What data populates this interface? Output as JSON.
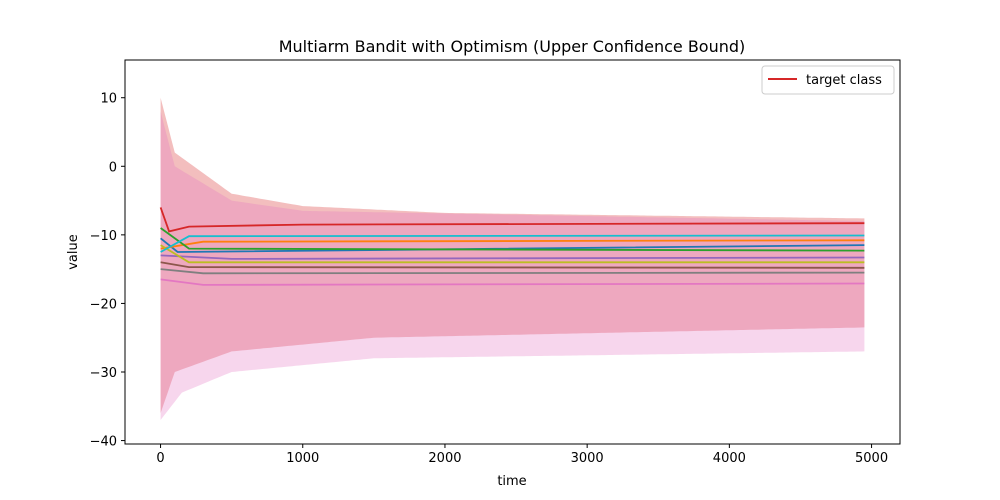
{
  "chart_data": {
    "type": "line",
    "title": "Multiarm Bandit with Optimism (Upper Confidence Bound)",
    "xlabel": "time",
    "ylabel": "value",
    "xlim": [
      -250,
      5200
    ],
    "ylim": [
      -40.5,
      15.5
    ],
    "x_ticks": [
      0,
      1000,
      2000,
      3000,
      4000,
      5000
    ],
    "y_ticks": [
      -40,
      -30,
      -20,
      -10,
      0,
      10
    ],
    "x_end": 4950,
    "legend": {
      "location": "top-right",
      "entries": [
        {
          "label": "target class",
          "color": "#d62728"
        }
      ]
    },
    "series": [
      {
        "color": "#d62728",
        "values": [
          [
            0,
            -6
          ],
          [
            60,
            -9.5
          ],
          [
            200,
            -8.8
          ],
          [
            1000,
            -8.5
          ],
          [
            4950,
            -8.3
          ]
        ],
        "band_upper": [
          [
            0,
            10
          ],
          [
            100,
            2
          ],
          [
            500,
            -4
          ],
          [
            1000,
            -5.8
          ],
          [
            2000,
            -6.8
          ],
          [
            4950,
            -7.6
          ]
        ],
        "band_lower": [
          [
            0,
            -36
          ],
          [
            100,
            -30
          ],
          [
            500,
            -27
          ],
          [
            1500,
            -25
          ],
          [
            4950,
            -23.5
          ]
        ]
      },
      {
        "color": "#1f77b4",
        "values": [
          [
            0,
            -10.5
          ],
          [
            120,
            -12.5
          ],
          [
            4950,
            -11.5
          ]
        ]
      },
      {
        "color": "#ff7f0e",
        "values": [
          [
            0,
            -12
          ],
          [
            300,
            -11
          ],
          [
            4950,
            -10.8
          ]
        ]
      },
      {
        "color": "#2ca02c",
        "values": [
          [
            0,
            -9
          ],
          [
            200,
            -12
          ],
          [
            4950,
            -12.3
          ]
        ]
      },
      {
        "color": "#9467bd",
        "values": [
          [
            0,
            -13
          ],
          [
            500,
            -13.5
          ],
          [
            4950,
            -13.3
          ]
        ]
      },
      {
        "color": "#8c564b",
        "values": [
          [
            0,
            -14
          ],
          [
            200,
            -14.7
          ],
          [
            4950,
            -14.8
          ]
        ]
      },
      {
        "color": "#e377c2",
        "values": [
          [
            0,
            -16.5
          ],
          [
            300,
            -17.3
          ],
          [
            4950,
            -17.1
          ]
        ],
        "band_upper": [
          [
            0,
            8
          ],
          [
            100,
            0
          ],
          [
            500,
            -5
          ],
          [
            1000,
            -6.5
          ],
          [
            4950,
            -8
          ]
        ],
        "band_lower": [
          [
            0,
            -37
          ],
          [
            150,
            -33
          ],
          [
            500,
            -30
          ],
          [
            1500,
            -28
          ],
          [
            4950,
            -27
          ]
        ]
      },
      {
        "color": "#7f7f7f",
        "values": [
          [
            0,
            -15
          ],
          [
            300,
            -15.6
          ],
          [
            4950,
            -15.5
          ]
        ]
      },
      {
        "color": "#bcbd22",
        "values": [
          [
            0,
            -11.5
          ],
          [
            200,
            -14
          ],
          [
            4950,
            -14
          ]
        ]
      },
      {
        "color": "#17becf",
        "values": [
          [
            0,
            -12.5
          ],
          [
            200,
            -10.2
          ],
          [
            4950,
            -10.1
          ]
        ]
      }
    ]
  }
}
